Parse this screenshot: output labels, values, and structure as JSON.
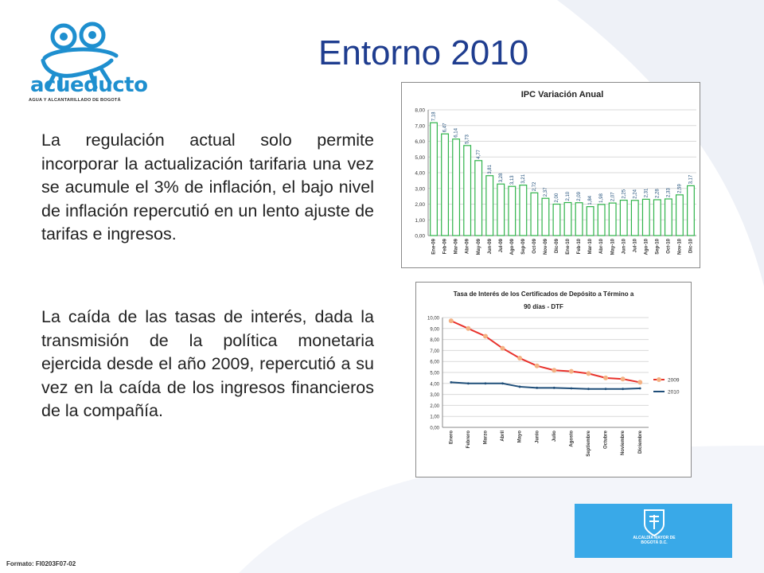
{
  "slide": {
    "title": "Entorno 2010",
    "paragraph_1": "La regulación actual solo permite incorporar la actualización tarifaria una vez se acumule el 3% de inflación, el bajo nivel de inflación repercutió en un lento ajuste de tarifas e ingresos.",
    "paragraph_2": "La caída de las tasas de interés, dada la transmisión de la política monetaria ejercida desde el año 2009, repercutió a su vez en la caída de los ingresos financieros de la compañía.",
    "footer": "Formato: FI0203F07-02"
  },
  "logo": {
    "name": "acueducto",
    "tagline": "AGUA Y ALCANTARILLADO DE BOGOTÁ"
  },
  "gov_badge": {
    "text": "ALCALDÍA MAYOR DE BOGOTÁ D.C."
  },
  "colors": {
    "title": "#1f3d8f",
    "bar": "#2fb34a",
    "line_2009": "#e8322c",
    "marker_2009": "#f4b183",
    "line_2010": "#1f4e79",
    "badge": "#39a9e8",
    "decor": "#e6eaf2"
  },
  "chart_data": [
    {
      "type": "bar",
      "title": "IPC Variación Anual",
      "categories": [
        "Ene-09",
        "Feb-09",
        "Mar-09",
        "Abr-09",
        "May-09",
        "Jun-09",
        "Jul-09",
        "Ago-09",
        "Sep-09",
        "Oct-09",
        "Nov-09",
        "Dic-09",
        "Ene-10",
        "Feb-10",
        "Mar-10",
        "Abr-10",
        "May-10",
        "Jun-10",
        "Jul-10",
        "Ago-10",
        "Sep-10",
        "Oct-10",
        "Nov-10",
        "Dic-10"
      ],
      "values": [
        7.18,
        6.47,
        6.14,
        5.73,
        4.77,
        3.81,
        3.28,
        3.13,
        3.21,
        2.72,
        2.37,
        2.0,
        2.1,
        2.09,
        1.84,
        1.98,
        2.07,
        2.25,
        2.24,
        2.31,
        2.28,
        2.33,
        2.59,
        3.17
      ],
      "value_labels": [
        "7,18",
        "6,47",
        "6,14",
        "5,73",
        "4,77",
        "3,81",
        "3,28",
        "3,13",
        "3,21",
        "2,72",
        "2,37",
        "2,00",
        "2,10",
        "2,09",
        "1,84",
        "1,98",
        "2,07",
        "2,25",
        "2,24",
        "2,31",
        "2,28",
        "2,33",
        "2,59",
        "3,17"
      ],
      "yticks": [
        "0,00",
        "1,00",
        "2,00",
        "3,00",
        "4,00",
        "5,00",
        "6,00",
        "7,00",
        "8,00"
      ],
      "ylim": [
        0,
        8
      ],
      "grid": true,
      "legend": "none"
    },
    {
      "type": "line",
      "title_line1": "Tasa de Interés de los Certificados de Depósito a Término a",
      "title_line2": "90 días - DTF",
      "categories": [
        "Enero",
        "Febrero",
        "Marzo",
        "Abril",
        "Mayo",
        "Junio",
        "Julio",
        "Agosto",
        "Septiembre",
        "Octubre",
        "Noviembre",
        "Diciembre"
      ],
      "series": [
        {
          "name": "2009",
          "values": [
            9.7,
            9.0,
            8.3,
            7.2,
            6.3,
            5.6,
            5.2,
            5.1,
            4.9,
            4.5,
            4.4,
            4.1
          ]
        },
        {
          "name": "2010",
          "values": [
            4.1,
            4.0,
            4.0,
            4.0,
            3.7,
            3.6,
            3.6,
            3.55,
            3.5,
            3.5,
            3.5,
            3.55
          ]
        }
      ],
      "yticks": [
        "0,00",
        "1,00",
        "2,00",
        "3,00",
        "4,00",
        "5,00",
        "6,00",
        "7,00",
        "8,00",
        "9,00",
        "10,00"
      ],
      "ylim": [
        0,
        10
      ],
      "grid": true,
      "legend": "right"
    }
  ]
}
